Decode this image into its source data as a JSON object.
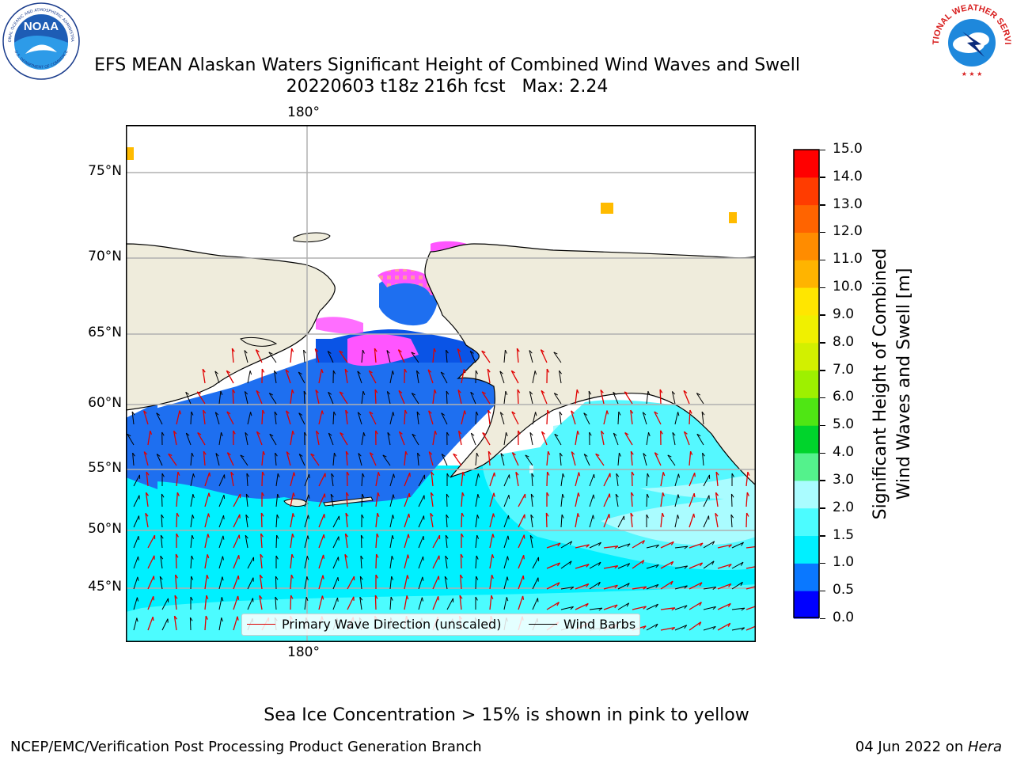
{
  "title_line1": "EFS MEAN Alaskan Waters Significant Height of Combined Wind Waves and Swell",
  "title_line2": "20220603 t18z 216h fcst   Max: 2.24",
  "map": {
    "lon_label_top": "180°",
    "lon_label_bottom": "180°",
    "lat_labels": [
      "75°N",
      "70°N",
      "65°N",
      "60°N",
      "55°N",
      "50°N",
      "45°N"
    ],
    "colors": {
      "land": "#efecdc",
      "ocean_dark": "#1e6ff0",
      "ocean_mid": "#00f0ff",
      "ocean_light": "#aafcff",
      "sea_ice": "#ff55ff",
      "ice_edge": "#ffbb00",
      "grid": "#b0b0b0",
      "arrow": "#e00000",
      "barb": "#000000"
    }
  },
  "legend": {
    "wave_label": "Primary Wave Direction (unscaled)",
    "barb_label": "Wind Barbs",
    "wave_color": "#e00000",
    "barb_color": "#000000"
  },
  "colorbar": {
    "label_line1": "Significant Height of Combined",
    "label_line2": "Wind Waves and Swell [m]",
    "ticks": [
      "0.0",
      "0.5",
      "1.0",
      "1.5",
      "2.0",
      "3.0",
      "4.0",
      "5.0",
      "6.0",
      "7.0",
      "8.0",
      "9.0",
      "10.0",
      "11.0",
      "12.0",
      "13.0",
      "14.0",
      "15.0"
    ],
    "colors": [
      "#0000ff",
      "#0a78ff",
      "#00f0ff",
      "#4cfcff",
      "#aafcff",
      "#54f28c",
      "#00d42c",
      "#4fe614",
      "#9ef000",
      "#d2f000",
      "#f0f000",
      "#ffe600",
      "#ffb400",
      "#ff8c00",
      "#ff6400",
      "#ff3c00",
      "#ff0000"
    ]
  },
  "caption": "Sea Ice Concentration > 15% is shown in pink to yellow",
  "footer_left": "NCEP/EMC/Verification Post Processing Product Generation Branch",
  "footer_right_prefix": "04 Jun 2022 on ",
  "footer_right_italic": "Hera",
  "logos": {
    "noaa_text": "NOAA",
    "noaa_ring": "NATIONAL OCEANIC AND ATMOSPHERIC ADMINISTRATION",
    "noaa_ring_bottom": "U.S. DEPARTMENT OF COMMERCE",
    "nws_ring": "NATIONAL WEATHER SERVICE"
  }
}
